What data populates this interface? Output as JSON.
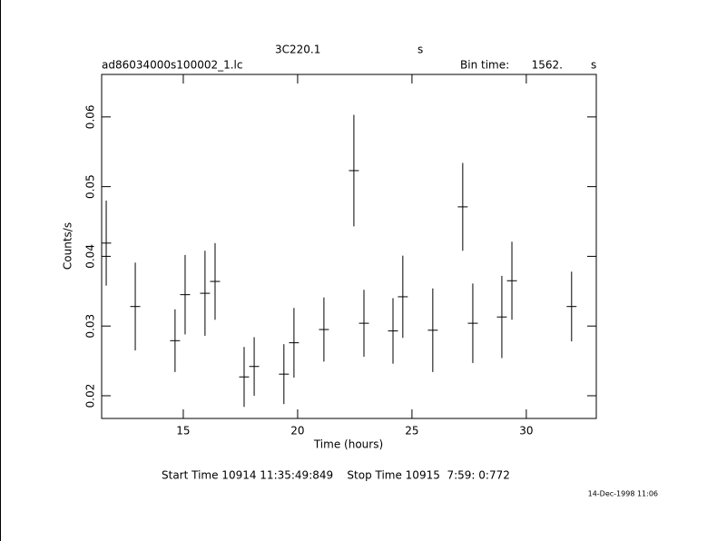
{
  "chart_data": {
    "type": "errorbar",
    "title": "3C220.1",
    "title_unit": "s",
    "filename": "ad86034000s100002_1.lc",
    "bin_time_label": "Bin time:",
    "bin_time": "1562.",
    "bin_time_unit": "s",
    "xlabel": "Time (hours)",
    "ylabel": "Counts/s",
    "footer": "Start Time 10914 11:35:49:849    Stop Time 10915  7:59: 0:772",
    "timestamp": "14-Dec-1998 11:06",
    "x": [
      11.63,
      12.9,
      14.64,
      15.08,
      15.95,
      16.39,
      17.66,
      18.1,
      19.4,
      19.84,
      21.15,
      22.46,
      22.9,
      24.17,
      24.6,
      25.91,
      27.22,
      27.66,
      28.93,
      29.37,
      31.98
    ],
    "xerr": 0.217,
    "values": [
      0.0419,
      0.0328,
      0.0279,
      0.0345,
      0.0347,
      0.0364,
      0.0227,
      0.0242,
      0.0231,
      0.0276,
      0.0295,
      0.0523,
      0.0304,
      0.0293,
      0.0342,
      0.0294,
      0.0471,
      0.0304,
      0.0313,
      0.0365,
      0.0328
    ],
    "errors": [
      0.0061,
      0.0063,
      0.0045,
      0.0057,
      0.0061,
      0.0055,
      0.0043,
      0.0042,
      0.0043,
      0.005,
      0.0046,
      0.008,
      0.0048,
      0.0047,
      0.0059,
      0.006,
      0.0063,
      0.0057,
      0.0059,
      0.0056,
      0.005
    ],
    "color": "#000000",
    "xlim": [
      11.43,
      33.06
    ],
    "ylim": [
      0.01674,
      0.0661
    ],
    "xticks": [
      15,
      20,
      25,
      30
    ],
    "yticks": [
      0.02,
      0.03,
      0.04,
      0.05,
      0.06
    ]
  }
}
